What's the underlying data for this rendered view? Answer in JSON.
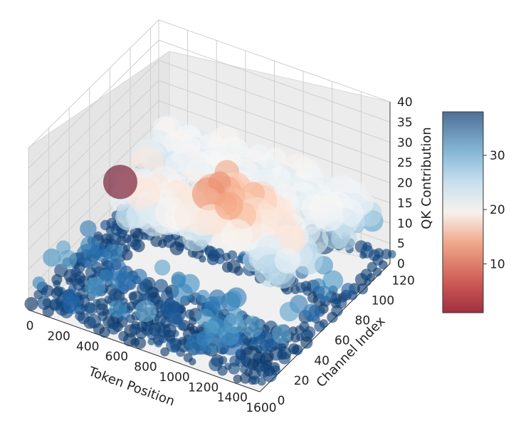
{
  "chart_data": {
    "type": "scatter",
    "subtype": "3d-scatter-bubble",
    "title": "",
    "xlabel": "Token Position",
    "ylabel": "Channel Index",
    "zlabel": "QK Contribution",
    "xlim": [
      0,
      1600
    ],
    "ylim": [
      0,
      128
    ],
    "zlim": [
      0,
      40
    ],
    "x_ticks": [
      "0",
      "200",
      "400",
      "600",
      "800",
      "1000",
      "1200",
      "1400",
      "1600"
    ],
    "y_ticks": [
      "0",
      "20",
      "40",
      "60",
      "80",
      "100",
      "120"
    ],
    "z_ticks": [
      "0",
      "5",
      "10",
      "15",
      "20",
      "25",
      "30",
      "35",
      "40"
    ],
    "colorbar": {
      "colormap": "RdBu",
      "range": [
        1,
        38
      ],
      "ticks": [
        "10",
        "20",
        "30"
      ],
      "colors": [
        "#67001f",
        "#b2182b",
        "#d6604d",
        "#f4a582",
        "#fddbc7",
        "#f7f7f7",
        "#d1e5f0",
        "#92c5de",
        "#4393c3",
        "#2166ac",
        "#053061"
      ]
    },
    "grid": true,
    "marker_alpha": 0.6,
    "series": [
      {
        "description_points": [
          {
            "x": 600,
            "y": 5,
            "z": 38
          },
          {
            "x": 400,
            "y": 60,
            "z": 18
          },
          {
            "x": 600,
            "y": 60,
            "z": 22
          },
          {
            "x": 900,
            "y": 60,
            "z": 28
          },
          {
            "x": 1000,
            "y": 60,
            "z": 26
          },
          {
            "x": 1300,
            "y": 60,
            "z": 16
          },
          {
            "x": 300,
            "y": 100,
            "z": 20
          },
          {
            "x": 800,
            "y": 100,
            "z": 20
          },
          {
            "x": 1400,
            "y": 100,
            "z": 17
          },
          {
            "x": 200,
            "y": 10,
            "z": 2
          },
          {
            "x": 800,
            "y": 30,
            "z": 2
          },
          {
            "x": 1400,
            "y": 20,
            "z": 1
          },
          {
            "x": 1200,
            "y": 120,
            "z": 2
          }
        ]
      }
    ]
  }
}
